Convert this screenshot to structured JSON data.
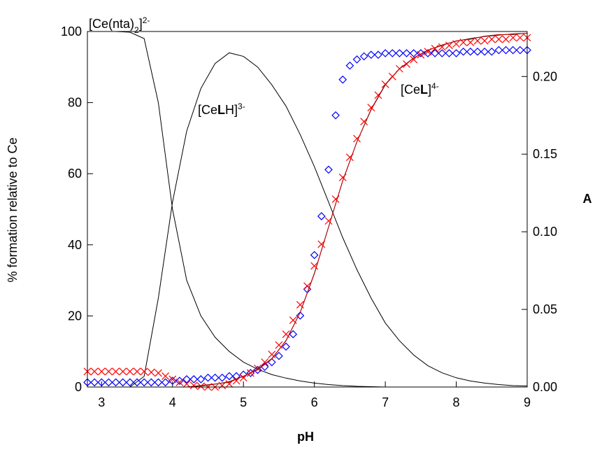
{
  "chart_data": {
    "type": "line",
    "xlabel": "pH",
    "ylabel": "% formation relative to Ce",
    "y2label": "A",
    "xlim": [
      2.8,
      9.0
    ],
    "ylim": [
      0,
      100
    ],
    "y2lim": [
      0,
      0.229
    ],
    "xticks": [
      3,
      4,
      5,
      6,
      7,
      8,
      9
    ],
    "yticks": [
      0,
      20,
      40,
      60,
      80,
      100
    ],
    "y2ticks": [
      {
        "value": 0,
        "label": "0.00"
      },
      0.05,
      {
        "value": 0.1,
        "label": "0.10"
      },
      0.15,
      {
        "value": 0.2,
        "label": "0.20"
      }
    ],
    "annotations": [
      [
        {
          "t": "[Ce(nta)"
        },
        {
          "t": "2",
          "style": "sub"
        },
        {
          "t": "]"
        },
        {
          "t": "2-",
          "style": "super"
        }
      ],
      [
        {
          "t": "[Ce"
        },
        {
          "t": "L",
          "style": "bold"
        },
        {
          "t": "H]"
        },
        {
          "t": "3-",
          "style": "super"
        }
      ],
      [
        {
          "t": "[Ce"
        },
        {
          "t": "L",
          "style": "bold"
        },
        {
          "t": "]"
        },
        {
          "t": "4-",
          "style": "super"
        }
      ]
    ],
    "series": [
      {
        "color": "#000000",
        "marker": "none",
        "axis": "y",
        "x": [
          2.8,
          3.0,
          3.2,
          3.4,
          3.6,
          3.8,
          4.0,
          4.2,
          4.4,
          4.6,
          4.8,
          5.0,
          5.2,
          5.4,
          5.6,
          5.8,
          6.0,
          6.2,
          6.4,
          6.6,
          6.8,
          7.0,
          7.2,
          7.4,
          7.6,
          7.8,
          8.0,
          8.2,
          8.4,
          8.6,
          8.8,
          9.0
        ],
        "values": [
          100,
          100,
          100,
          99.8,
          98,
          80,
          50,
          30,
          20,
          14,
          10,
          7,
          5,
          3.5,
          2.5,
          1.7,
          1.1,
          0.7,
          0.4,
          0.2,
          0.1,
          0,
          0,
          0,
          0,
          0,
          0,
          0,
          0,
          0,
          0,
          0
        ]
      },
      {
        "color": "#000000",
        "marker": "none",
        "axis": "y",
        "x": [
          2.8,
          3.0,
          3.2,
          3.4,
          3.6,
          3.8,
          4.0,
          4.2,
          4.4,
          4.6,
          4.8,
          5.0,
          5.2,
          5.4,
          5.6,
          5.8,
          6.0,
          6.2,
          6.4,
          6.6,
          6.8,
          7.0,
          7.2,
          7.4,
          7.6,
          7.8,
          8.0,
          8.2,
          8.4,
          8.6,
          8.8,
          9.0
        ],
        "values": [
          0,
          0,
          0,
          0,
          3,
          25,
          52,
          72,
          84,
          91,
          94,
          93,
          90,
          85,
          79,
          71,
          62,
          52,
          42,
          33,
          25,
          18,
          13,
          9,
          6,
          4,
          2.6,
          1.7,
          1.1,
          0.7,
          0.4,
          0.3
        ]
      },
      {
        "color": "#000000",
        "marker": "none",
        "axis": "y",
        "x": [
          2.8,
          3.0,
          3.2,
          3.4,
          3.6,
          3.8,
          4.0,
          4.2,
          4.4,
          4.6,
          4.8,
          5.0,
          5.2,
          5.4,
          5.6,
          5.8,
          6.0,
          6.2,
          6.4,
          6.6,
          6.8,
          7.0,
          7.2,
          7.4,
          7.6,
          7.8,
          8.0,
          8.2,
          8.4,
          8.6,
          8.8,
          9.0
        ],
        "values": [
          0,
          0,
          0,
          0,
          0,
          0,
          0,
          0,
          0.3,
          0.8,
          1.5,
          3,
          5,
          8,
          13,
          21,
          32,
          45,
          58,
          69,
          78,
          85,
          89.5,
          92.5,
          94.7,
          96.2,
          97.3,
          98,
          98.6,
          99,
          99.3,
          99.5
        ]
      },
      {
        "color": "#0000ff",
        "marker": "diamond",
        "axis": "y2",
        "x": [
          2.8,
          2.9,
          3.0,
          3.1,
          3.2,
          3.3,
          3.4,
          3.5,
          3.6,
          3.7,
          3.8,
          3.9,
          4.0,
          4.1,
          4.2,
          4.3,
          4.4,
          4.5,
          4.6,
          4.7,
          4.8,
          4.9,
          5.0,
          5.1,
          5.2,
          5.3,
          5.4,
          5.5,
          5.6,
          5.7,
          5.8,
          5.9,
          6.0,
          6.1,
          6.2,
          6.3,
          6.4,
          6.5,
          6.6,
          6.7,
          6.8,
          6.9,
          7.0,
          7.1,
          7.2,
          7.3,
          7.4,
          7.5,
          7.6,
          7.7,
          7.8,
          7.9,
          8.0,
          8.1,
          8.2,
          8.3,
          8.4,
          8.5,
          8.6,
          8.7,
          8.8,
          8.9,
          9.0
        ],
        "values": [
          0.003,
          0.003,
          0.003,
          0.003,
          0.003,
          0.003,
          0.003,
          0.003,
          0.003,
          0.003,
          0.003,
          0.003,
          0.004,
          0.004,
          0.005,
          0.005,
          0.005,
          0.006,
          0.006,
          0.006,
          0.007,
          0.007,
          0.008,
          0.009,
          0.011,
          0.013,
          0.016,
          0.02,
          0.026,
          0.034,
          0.046,
          0.063,
          0.085,
          0.11,
          0.14,
          0.175,
          0.198,
          0.207,
          0.211,
          0.213,
          0.214,
          0.214,
          0.215,
          0.215,
          0.215,
          0.215,
          0.215,
          0.215,
          0.215,
          0.215,
          0.215,
          0.215,
          0.215,
          0.216,
          0.216,
          0.216,
          0.216,
          0.216,
          0.217,
          0.217,
          0.217,
          0.217,
          0.217
        ]
      },
      {
        "color": "#ff0000",
        "marker": "x",
        "axis": "y2",
        "x": [
          2.8,
          2.9,
          3.0,
          3.1,
          3.2,
          3.3,
          3.4,
          3.5,
          3.6,
          3.7,
          3.8,
          3.9,
          4.0,
          4.1,
          4.2,
          4.3,
          4.4,
          4.5,
          4.6,
          4.7,
          4.8,
          4.9,
          5.0,
          5.1,
          5.2,
          5.3,
          5.4,
          5.5,
          5.6,
          5.7,
          5.8,
          5.9,
          6.0,
          6.1,
          6.2,
          6.3,
          6.4,
          6.5,
          6.6,
          6.7,
          6.8,
          6.9,
          7.0,
          7.1,
          7.2,
          7.3,
          7.4,
          7.5,
          7.6,
          7.7,
          7.8,
          7.9,
          8.0,
          8.1,
          8.2,
          8.3,
          8.4,
          8.5,
          8.6,
          8.7,
          8.8,
          8.9,
          9.0
        ],
        "values": [
          0.01,
          0.01,
          0.01,
          0.01,
          0.01,
          0.01,
          0.01,
          0.01,
          0.01,
          0.0095,
          0.009,
          0.007,
          0.005,
          0.003,
          0.002,
          0.001,
          0.0005,
          0,
          0,
          0.001,
          0.002,
          0.004,
          0.006,
          0.009,
          0.012,
          0.016,
          0.021,
          0.027,
          0.034,
          0.043,
          0.053,
          0.065,
          0.078,
          0.092,
          0.107,
          0.121,
          0.135,
          0.148,
          0.16,
          0.171,
          0.18,
          0.188,
          0.195,
          0.2,
          0.205,
          0.208,
          0.211,
          0.214,
          0.216,
          0.218,
          0.219,
          0.22,
          0.221,
          0.222,
          0.222,
          0.223,
          0.223,
          0.224,
          0.224,
          0.224,
          0.225,
          0.225,
          0.225
        ]
      },
      {
        "color": "#cc0000",
        "marker": "none",
        "axis": "y2",
        "x": [
          2.8,
          3.0,
          3.2,
          3.4,
          3.6,
          3.8,
          4.0,
          4.2,
          4.4,
          4.6,
          4.8,
          5.0,
          5.2,
          5.4,
          5.6,
          5.8,
          6.0,
          6.2,
          6.4,
          6.6,
          6.8,
          7.0,
          7.2,
          7.4,
          7.6,
          7.8,
          8.0,
          8.2,
          8.4,
          8.6,
          8.8,
          9.0
        ],
        "values": [
          0,
          0,
          0,
          0,
          0,
          0,
          0,
          0,
          0.001,
          0.002,
          0.003,
          0.007,
          0.011,
          0.018,
          0.03,
          0.048,
          0.073,
          0.103,
          0.133,
          0.158,
          0.179,
          0.195,
          0.205,
          0.212,
          0.217,
          0.22,
          0.223,
          0.224,
          0.226,
          0.227,
          0.227,
          0.228
        ]
      }
    ]
  }
}
